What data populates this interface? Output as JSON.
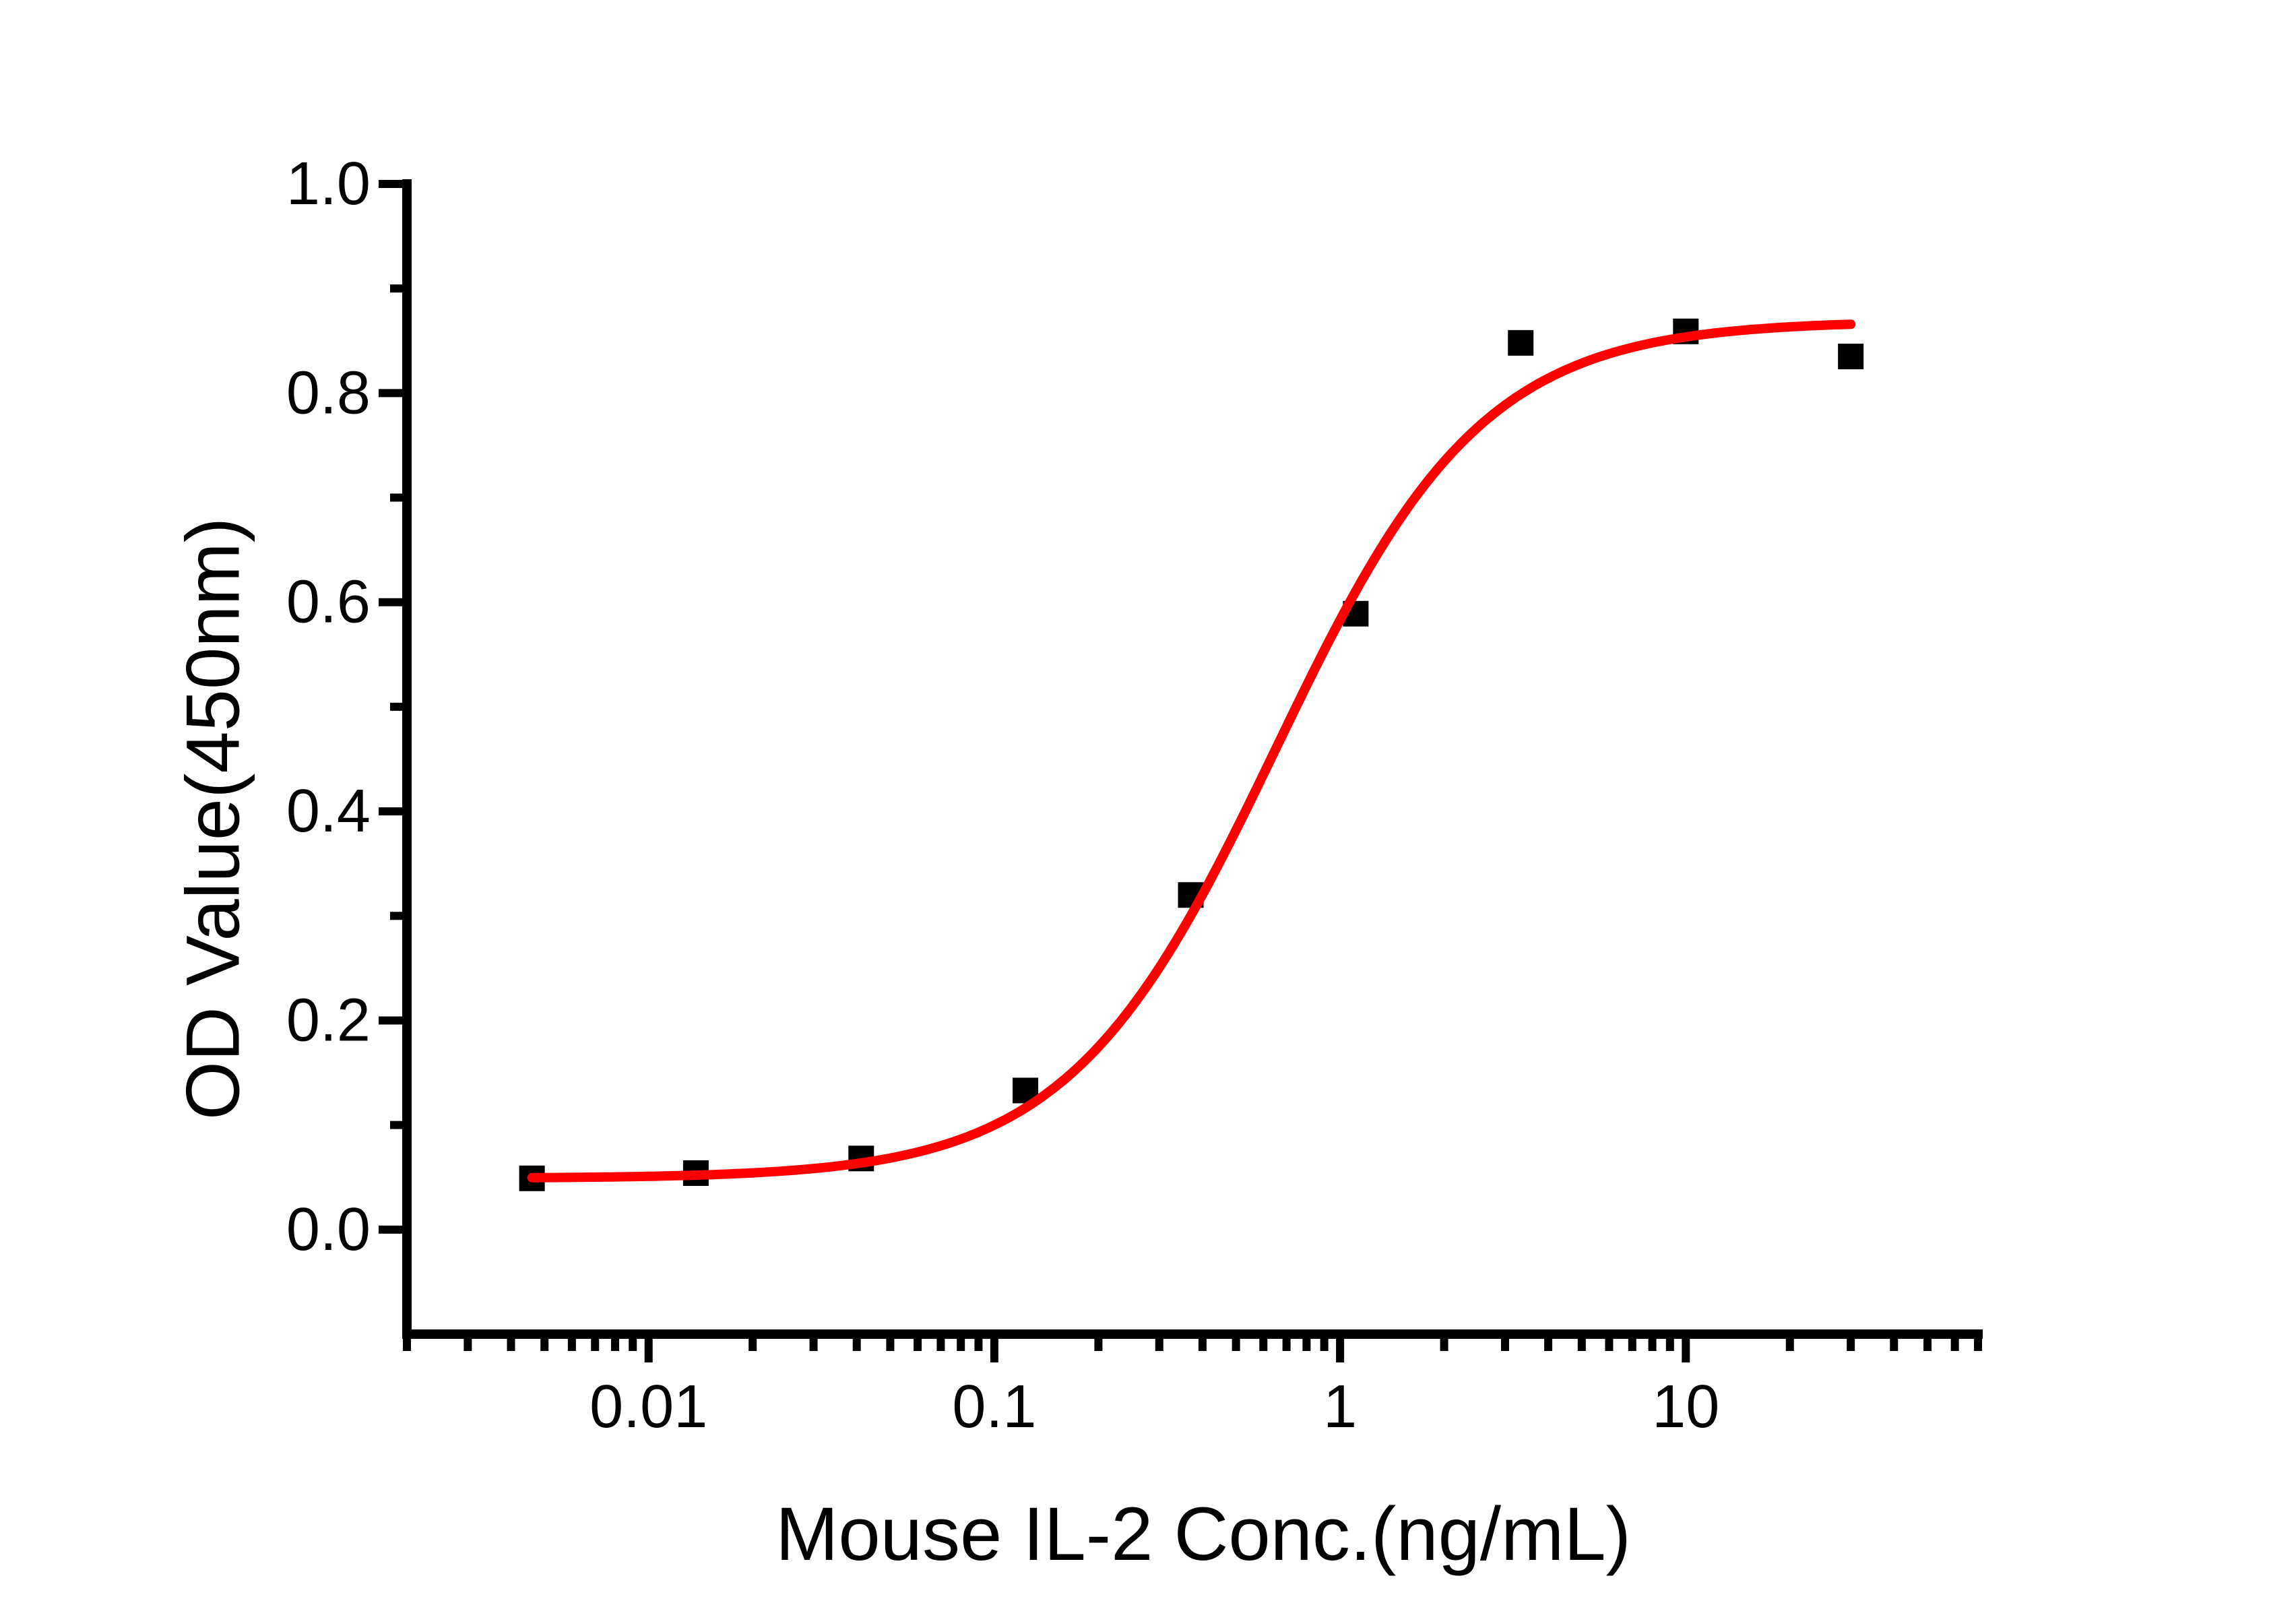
{
  "chart_data": {
    "type": "scatter",
    "title": "",
    "xlabel": "Mouse IL-2 Conc.(ng/mL)",
    "ylabel": "OD Value(450nm)",
    "x_scale": "log",
    "y_scale": "linear",
    "x_range": [
      0.002,
      70
    ],
    "y_range": [
      -0.1,
      1.0
    ],
    "grid": false,
    "legend": "none",
    "background_color": "#ffffff",
    "axis_color": "#000000",
    "x_major_ticks": [
      0.01,
      0.1,
      1,
      10
    ],
    "x_major_tick_labels": [
      "0.01",
      "0.1",
      "1",
      "10"
    ],
    "x_minor_ticks": [
      0.002,
      0.003,
      0.004,
      0.005,
      0.006,
      0.007,
      0.008,
      0.009,
      0.02,
      0.03,
      0.04,
      0.05,
      0.06,
      0.07,
      0.08,
      0.09,
      0.2,
      0.3,
      0.4,
      0.5,
      0.6,
      0.7,
      0.8,
      0.9,
      2,
      3,
      4,
      5,
      6,
      7,
      8,
      9,
      20,
      30,
      40,
      50,
      60,
      70
    ],
    "y_major_ticks": [
      0.0,
      0.2,
      0.4,
      0.6,
      0.8,
      1.0
    ],
    "y_major_tick_labels": [
      "0.0",
      "0.2",
      "0.4",
      "0.6",
      "0.8",
      "1.0"
    ],
    "y_minor_ticks": [
      0.1,
      0.3,
      0.5,
      0.7,
      0.9
    ],
    "series": [
      {
        "marker": "filled-square",
        "marker_color": "#000000",
        "x": [
          0.0046,
          0.0137,
          0.0412,
          0.123,
          0.37,
          1.11,
          3.33,
          10,
          30
        ],
        "y": [
          0.049,
          0.054,
          0.068,
          0.133,
          0.32,
          0.589,
          0.848,
          0.859,
          0.835
        ]
      }
    ],
    "fit_curve": {
      "type": "4PL",
      "bottom": 0.049,
      "top": 0.869,
      "ec50": 0.65,
      "hill": 1.45,
      "x_start": 0.0046,
      "x_end": 30,
      "color": "#FF0000"
    }
  }
}
